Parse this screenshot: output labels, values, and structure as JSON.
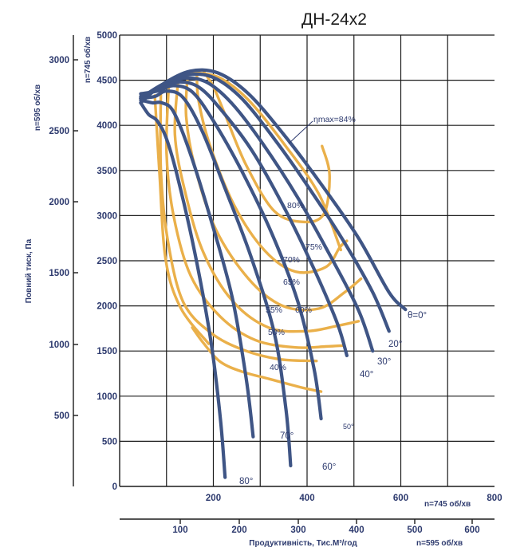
{
  "chart_data": {
    "type": "line",
    "title": "ДН-24х2",
    "x_axis_top": {
      "unit_label": "n=745 об/хв",
      "ticks": [
        "200",
        "400",
        "600",
        "800"
      ],
      "range": [
        0,
        800
      ]
    },
    "x_axis_bottom": {
      "label": "Продуктивність, Тис.М³/год",
      "unit_label": "n=595 об/хв",
      "ticks": [
        "100",
        "200",
        "300",
        "400",
        "500",
        "600"
      ]
    },
    "y_axis_inner": {
      "unit_label": "n=745 об/хв",
      "ticks": [
        "0",
        "500",
        "1000",
        "1500",
        "2000",
        "2500",
        "3000",
        "3500",
        "4000",
        "4500",
        "5000"
      ],
      "range": [
        0,
        5000
      ]
    },
    "y_axis_outer": {
      "unit_label": "n=595 об/хв",
      "label": "Повний тиск, Па",
      "ticks": [
        "500",
        "1000",
        "1500",
        "2000",
        "2500",
        "3000"
      ]
    },
    "blade_series": [
      {
        "name": "θ=0°",
        "points": [
          [
            45,
            4250
          ],
          [
            90,
            4450
          ],
          [
            150,
            4600
          ],
          [
            210,
            4580
          ],
          [
            275,
            4350
          ],
          [
            350,
            3900
          ],
          [
            430,
            3350
          ],
          [
            510,
            2750
          ],
          [
            575,
            2150
          ],
          [
            610,
            1960
          ]
        ]
      },
      {
        "name": "20°",
        "points": [
          [
            45,
            4300
          ],
          [
            90,
            4450
          ],
          [
            145,
            4560
          ],
          [
            200,
            4530
          ],
          [
            260,
            4300
          ],
          [
            330,
            3850
          ],
          [
            405,
            3300
          ],
          [
            480,
            2700
          ],
          [
            540,
            2150
          ],
          [
            575,
            1720
          ]
        ]
      },
      {
        "name": "30°",
        "points": [
          [
            45,
            4300
          ],
          [
            88,
            4420
          ],
          [
            135,
            4520
          ],
          [
            185,
            4480
          ],
          [
            240,
            4240
          ],
          [
            305,
            3800
          ],
          [
            380,
            3200
          ],
          [
            450,
            2550
          ],
          [
            510,
            1950
          ],
          [
            540,
            1500
          ]
        ]
      },
      {
        "name": "40°",
        "points": [
          [
            45,
            4320
          ],
          [
            85,
            4400
          ],
          [
            125,
            4480
          ],
          [
            170,
            4420
          ],
          [
            220,
            4150
          ],
          [
            285,
            3700
          ],
          [
            355,
            3050
          ],
          [
            420,
            2350
          ],
          [
            465,
            1800
          ],
          [
            485,
            1450
          ]
        ]
      },
      {
        "name": "50°",
        "points": [
          [
            45,
            4350
          ],
          [
            80,
            4380
          ],
          [
            115,
            4440
          ],
          [
            155,
            4370
          ],
          [
            200,
            4050
          ],
          [
            260,
            3500
          ],
          [
            325,
            2800
          ],
          [
            380,
            2050
          ],
          [
            415,
            1300
          ],
          [
            430,
            750
          ]
        ]
      },
      {
        "name": "60°",
        "points": [
          [
            45,
            4300
          ],
          [
            75,
            4320
          ],
          [
            100,
            4380
          ],
          [
            135,
            4310
          ],
          [
            175,
            3950
          ],
          [
            225,
            3300
          ],
          [
            280,
            2550
          ],
          [
            330,
            1700
          ],
          [
            355,
            850
          ],
          [
            365,
            230
          ]
        ]
      },
      {
        "name": "70°",
        "points": [
          [
            45,
            4280
          ],
          [
            70,
            4250
          ],
          [
            90,
            4250
          ],
          [
            115,
            4150
          ],
          [
            150,
            3700
          ],
          [
            195,
            2950
          ],
          [
            240,
            2100
          ],
          [
            270,
            1200
          ],
          [
            285,
            550
          ]
        ]
      },
      {
        "name": "80°",
        "points": [
          [
            45,
            4250
          ],
          [
            62,
            4120
          ],
          [
            80,
            4050
          ],
          [
            100,
            3850
          ],
          [
            125,
            3400
          ],
          [
            160,
            2600
          ],
          [
            195,
            1600
          ],
          [
            215,
            750
          ],
          [
            225,
            100
          ]
        ]
      }
    ],
    "efficiency_series": [
      {
        "name": "ηmax=84%",
        "points": [
          [
            150,
            4590
          ],
          [
            212,
            4530
          ],
          [
            275,
            4280
          ],
          [
            350,
            3800
          ],
          [
            425,
            3240
          ],
          [
            472,
            2620
          ]
        ]
      },
      {
        "name": "80%",
        "points": [
          [
            180,
            4590
          ],
          [
            200,
            4430
          ],
          [
            225,
            4120
          ],
          [
            270,
            3560
          ],
          [
            330,
            3050
          ],
          [
            392,
            2930
          ],
          [
            436,
            3020
          ],
          [
            448,
            3450
          ],
          [
            432,
            3770
          ]
        ]
      },
      {
        "name": "75%",
        "points": [
          [
            165,
            4580
          ],
          [
            168,
            4290
          ],
          [
            192,
            3790
          ],
          [
            245,
            3110
          ],
          [
            310,
            2610
          ],
          [
            375,
            2380
          ],
          [
            440,
            2430
          ],
          [
            470,
            2650
          ],
          [
            485,
            2720
          ]
        ]
      },
      {
        "name": "70%",
        "points": [
          [
            145,
            4550
          ],
          [
            142,
            4100
          ],
          [
            160,
            3550
          ],
          [
            205,
            2850
          ],
          [
            275,
            2300
          ],
          [
            348,
            2000
          ],
          [
            425,
            1970
          ],
          [
            480,
            2150
          ],
          [
            515,
            2300
          ]
        ]
      },
      {
        "name": "65%",
        "points": [
          [
            125,
            4510
          ],
          [
            118,
            3900
          ],
          [
            138,
            3300
          ],
          [
            178,
            2600
          ],
          [
            240,
            2060
          ],
          [
            318,
            1760
          ],
          [
            400,
            1720
          ],
          [
            465,
            1780
          ],
          [
            510,
            1830
          ]
        ]
      },
      {
        "name": "60%",
        "points": [
          [
            105,
            4460
          ],
          [
            100,
            3700
          ],
          [
            115,
            3000
          ],
          [
            152,
            2330
          ],
          [
            215,
            1880
          ],
          [
            290,
            1620
          ],
          [
            375,
            1540
          ],
          [
            440,
            1550
          ],
          [
            475,
            1560
          ]
        ]
      },
      {
        "name": "55%",
        "points": [
          [
            88,
            4400
          ],
          [
            88,
            3500
          ],
          [
            102,
            2750
          ],
          [
            135,
            2050
          ],
          [
            195,
            1700
          ],
          [
            265,
            1510
          ],
          [
            340,
            1410
          ],
          [
            420,
            1390
          ]
        ]
      },
      {
        "name": "50%",
        "points": [
          [
            75,
            4330
          ],
          [
            85,
            3480
          ],
          [
            98,
            2520
          ],
          [
            130,
            1980
          ],
          [
            190,
            1580
          ]
        ]
      },
      {
        "name": "40%",
        "points": [
          [
            155,
            1760
          ],
          [
            180,
            1580
          ],
          [
            215,
            1380
          ],
          [
            262,
            1270
          ],
          [
            320,
            1190
          ],
          [
            385,
            1100
          ],
          [
            430,
            1050
          ]
        ]
      }
    ],
    "curve_labels": {
      "eta_max": "ηmax=84%",
      "e80": "80%",
      "e75": "75%",
      "e70": "70%",
      "e65": "65%",
      "e60": "60%",
      "e55": "55%",
      "e50": "50%",
      "e40": "40%",
      "b0": "θ=0°",
      "b20": "20°",
      "b30": "30°",
      "b40": "40°",
      "b50": "50°",
      "b60": "60°",
      "b70": "70°",
      "b80": "80°"
    }
  }
}
